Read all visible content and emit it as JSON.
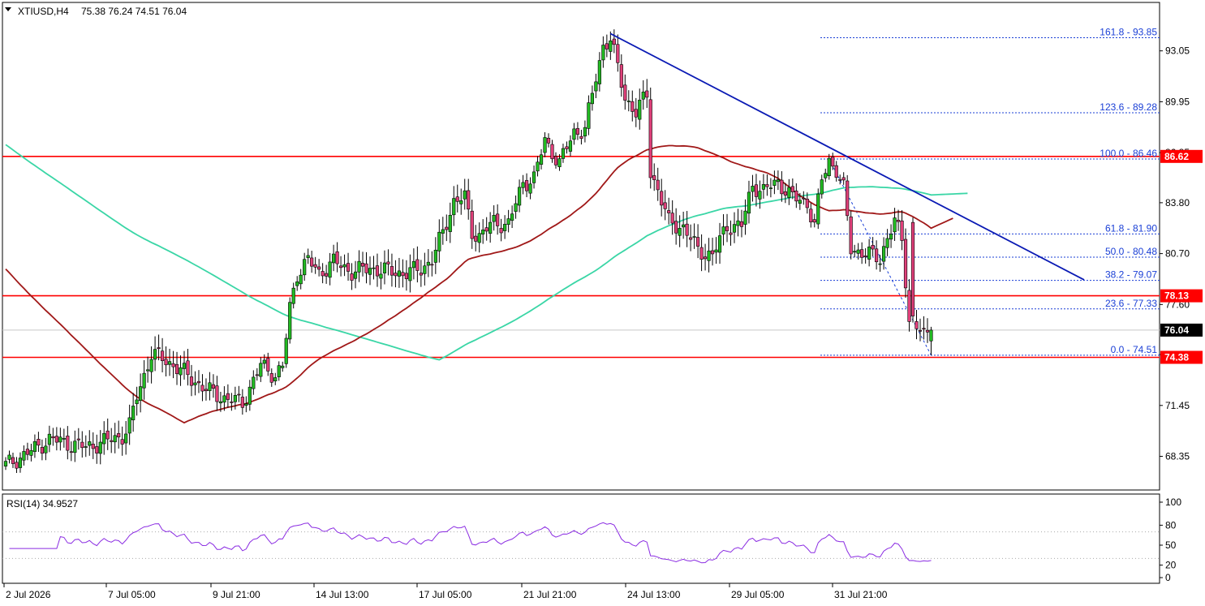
{
  "header": {
    "symbol_tf": "XTIUSD,H4",
    "ohlc": "75.38 76.24 74.51 76.04"
  },
  "rsi_header": "RSI(14) 34.9527",
  "chart_data": {
    "type": "candlestick",
    "symbol": "XTIUSD",
    "timeframe": "H4",
    "price_axis": {
      "ticks": [
        "93.05",
        "89.95",
        "86.85",
        "83.80",
        "80.70",
        "77.60",
        "74.55",
        "71.45",
        "68.35"
      ],
      "range": [
        66.3,
        96.0
      ]
    },
    "time_axis": {
      "ticks": [
        "2 Jul 2026",
        "7 Jul 05:00",
        "9 Jul 21:00",
        "14 Jul 13:00",
        "17 Jul 05:00",
        "21 Jul 21:00",
        "24 Jul 13:00",
        "29 Jul 05:00",
        "31 Jul 21:00"
      ]
    },
    "horizontal_levels": [
      {
        "value": 86.62,
        "label": "86.62",
        "color": "#ff0000"
      },
      {
        "value": 78.13,
        "label": "78.13",
        "color": "#ff0000"
      },
      {
        "value": 74.38,
        "label": "74.38",
        "color": "#ff0000"
      }
    ],
    "current_price": {
      "value": 76.04,
      "label": "76.04"
    },
    "fibonacci": [
      {
        "ratio": "161.8",
        "value": 93.85,
        "label": "161.8 - 93.85"
      },
      {
        "ratio": "123.6",
        "value": 89.28,
        "label": "123.6 - 89.28"
      },
      {
        "ratio": "100.0",
        "value": 86.46,
        "label": "100.0 - 86.46"
      },
      {
        "ratio": "61.8",
        "value": 81.9,
        "label": "61.8 - 81.90"
      },
      {
        "ratio": "50.0",
        "value": 80.48,
        "label": "50.0 - 80.48"
      },
      {
        "ratio": "38.2",
        "value": 79.07,
        "label": "38.2 - 79.07"
      },
      {
        "ratio": "23.6",
        "value": 77.33,
        "label": "23.6 - 77.33"
      },
      {
        "ratio": "0.0",
        "value": 74.51,
        "label": "0.0 - 74.51"
      }
    ],
    "trendline": {
      "from": {
        "index": 166,
        "value": 94.1
      },
      "to": {
        "index": 296,
        "value": 79.1
      },
      "color": "#0a1ab4"
    },
    "ma_fast": {
      "color": "#a01818"
    },
    "ma_slow": {
      "color": "#3ad6a6"
    },
    "rsi": {
      "period": 14,
      "value": 34.9527,
      "levels": [
        "100",
        "80",
        "50",
        "20",
        "0"
      ],
      "dotted_levels": [
        70,
        30
      ]
    },
    "colors": {
      "bull": "#22bb22",
      "bear": "#e0407a",
      "axis": "#000000"
    }
  }
}
